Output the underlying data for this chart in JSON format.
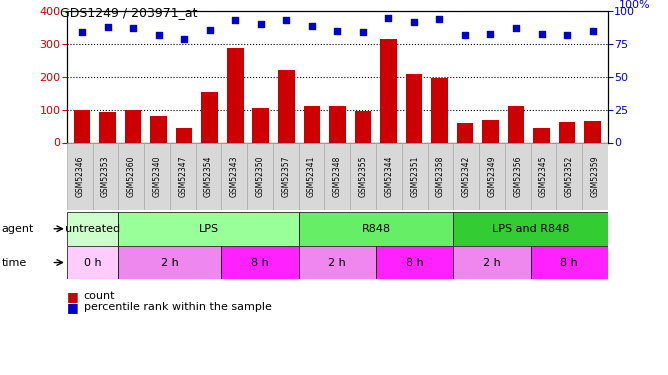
{
  "title": "GDS1249 / 203971_at",
  "samples": [
    "GSM52346",
    "GSM52353",
    "GSM52360",
    "GSM52340",
    "GSM52347",
    "GSM52354",
    "GSM52343",
    "GSM52350",
    "GSM52357",
    "GSM52341",
    "GSM52348",
    "GSM52355",
    "GSM52344",
    "GSM52351",
    "GSM52358",
    "GSM52342",
    "GSM52349",
    "GSM52356",
    "GSM52345",
    "GSM52352",
    "GSM52359"
  ],
  "counts": [
    100,
    92,
    98,
    82,
    45,
    155,
    288,
    105,
    222,
    110,
    112,
    95,
    315,
    210,
    198,
    60,
    68,
    110,
    45,
    62,
    65
  ],
  "percentiles": [
    84,
    88,
    87,
    82,
    79,
    86,
    93,
    90,
    93,
    89,
    85,
    84,
    95,
    92,
    94,
    82,
    83,
    87,
    83,
    82,
    85
  ],
  "bar_color": "#cc0000",
  "dot_color": "#0000cc",
  "ylim_left": [
    0,
    400
  ],
  "ylim_right": [
    0,
    100
  ],
  "yticks_left": [
    0,
    100,
    200,
    300,
    400
  ],
  "yticks_right": [
    0,
    25,
    50,
    75,
    100
  ],
  "agent_groups": [
    {
      "label": "untreated",
      "start": 0,
      "end": 2,
      "color": "#ccffcc"
    },
    {
      "label": "LPS",
      "start": 2,
      "end": 9,
      "color": "#99ff99"
    },
    {
      "label": "R848",
      "start": 9,
      "end": 15,
      "color": "#66ee66"
    },
    {
      "label": "LPS and R848",
      "start": 15,
      "end": 21,
      "color": "#33cc33"
    }
  ],
  "time_groups": [
    {
      "label": "0 h",
      "start": 0,
      "end": 2,
      "color": "#ffccff"
    },
    {
      "label": "2 h",
      "start": 2,
      "end": 6,
      "color": "#ee88ee"
    },
    {
      "label": "8 h",
      "start": 6,
      "end": 9,
      "color": "#ff22ff"
    },
    {
      "label": "2 h",
      "start": 9,
      "end": 12,
      "color": "#ee88ee"
    },
    {
      "label": "8 h",
      "start": 12,
      "end": 15,
      "color": "#ff22ff"
    },
    {
      "label": "2 h",
      "start": 15,
      "end": 18,
      "color": "#ee88ee"
    },
    {
      "label": "8 h",
      "start": 18,
      "end": 21,
      "color": "#ff22ff"
    }
  ],
  "bg_color": "#ffffff"
}
